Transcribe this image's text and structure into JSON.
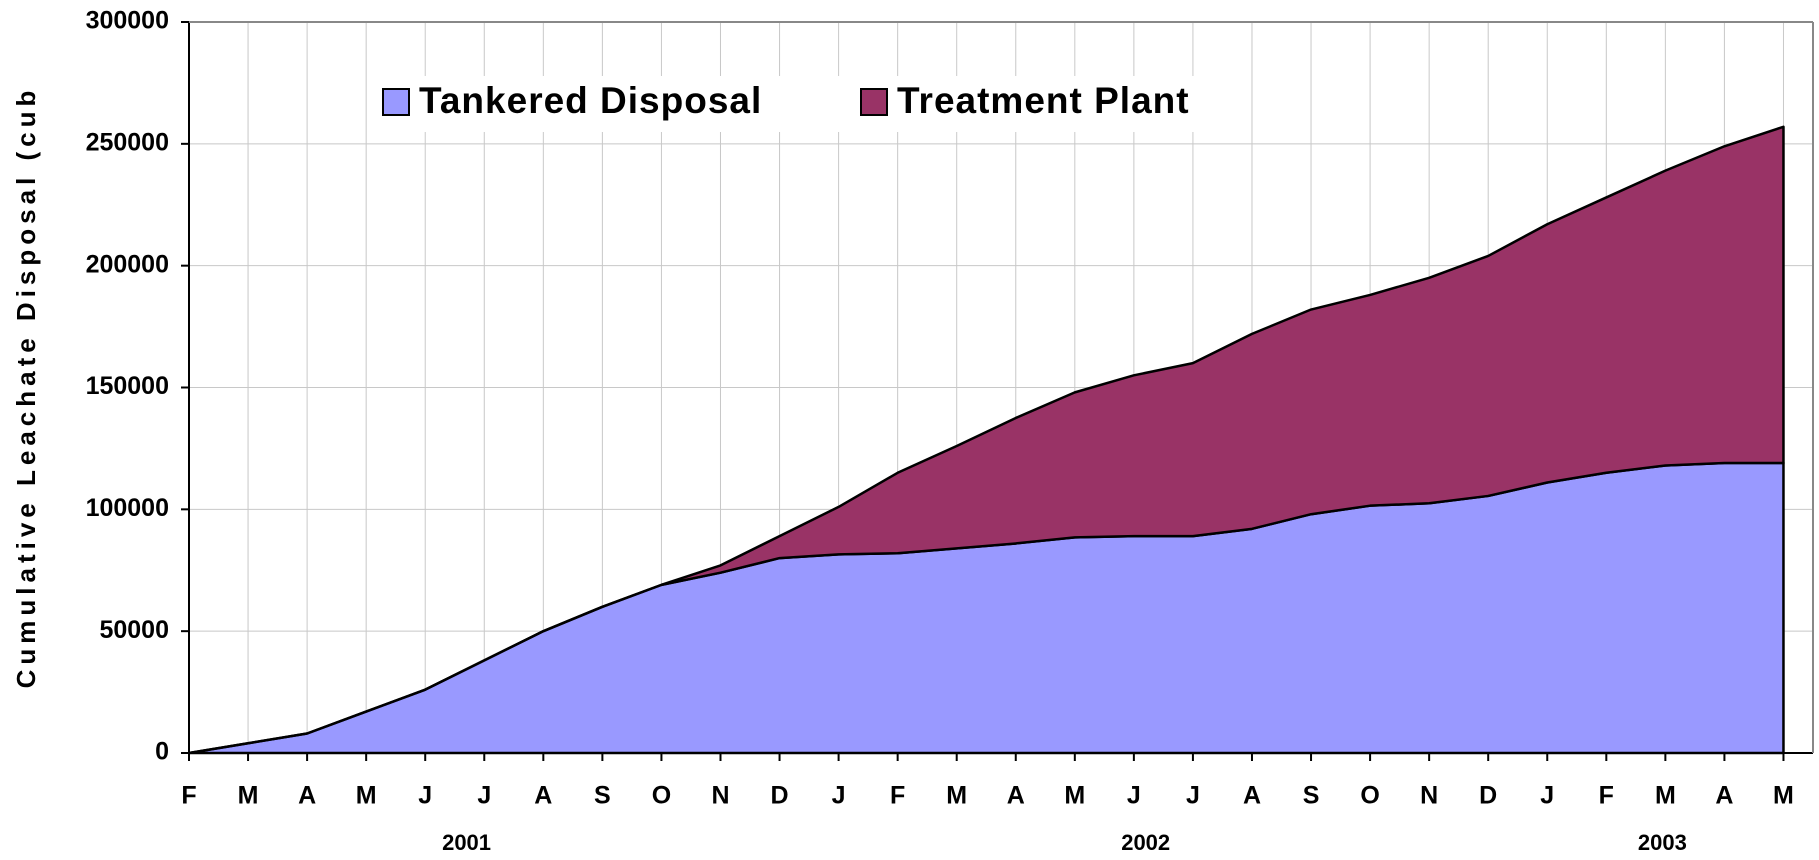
{
  "chart_data": {
    "type": "stacked_area",
    "y_label": "Cumulative Leachate Disposal (cub",
    "categories": [
      "F",
      "M",
      "A",
      "M",
      "J",
      "J",
      "A",
      "S",
      "O",
      "N",
      "D",
      "J",
      "F",
      "M",
      "A",
      "M",
      "J",
      "J",
      "A",
      "S",
      "O",
      "N",
      "D",
      "J",
      "F",
      "M",
      "A",
      "M"
    ],
    "x_group_labels": [
      "2001",
      "2002",
      "2003"
    ],
    "series": [
      {
        "name": "Tankered Disposal",
        "color": "#9999ff",
        "values": [
          0,
          4000,
          8000,
          17000,
          26000,
          38000,
          50000,
          60000,
          69000,
          74000,
          80000,
          81500,
          82000,
          84000,
          86000,
          88500,
          89000,
          89000,
          92000,
          98000,
          101500,
          102500,
          105500,
          111000,
          115000,
          118000,
          119000,
          119000
        ]
      },
      {
        "name": "Treatment Plant",
        "color": "#993366",
        "values": [
          0,
          0,
          0,
          0,
          0,
          0,
          0,
          0,
          0,
          3000,
          9000,
          19500,
          33000,
          42000,
          51500,
          59500,
          66000,
          71000,
          80000,
          84000,
          86500,
          92500,
          98500,
          106000,
          113000,
          121000,
          130000,
          138000
        ]
      }
    ],
    "ylim": [
      0,
      300000
    ],
    "yticks": [
      0,
      50000,
      100000,
      150000,
      200000,
      250000,
      300000
    ],
    "grid": true
  }
}
